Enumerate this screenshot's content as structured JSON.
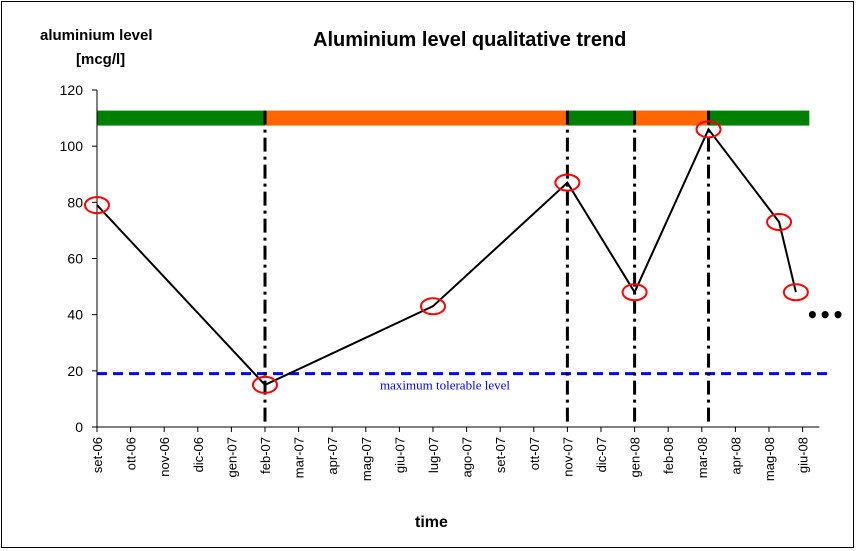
{
  "chart_data": {
    "type": "line",
    "title": "Aluminium level qualitative trend",
    "ylabel_line1": "aluminium level",
    "ylabel_line2": "[mcg/l]",
    "xlabel": "time",
    "ylim": [
      0,
      120
    ],
    "yticks": [
      0,
      20,
      40,
      60,
      80,
      100,
      120
    ],
    "categories": [
      "set-06",
      "ott-06",
      "nov-06",
      "dic-06",
      "gen-07",
      "feb-07",
      "mar-07",
      "apr-07",
      "mag-07",
      "giu-07",
      "lug-07",
      "ago-07",
      "set-07",
      "ott-07",
      "nov-07",
      "dic-07",
      "gen-08",
      "feb-08",
      "mar-08",
      "apr-08",
      "mag-08",
      "giu-08"
    ],
    "series": [
      {
        "name": "",
        "color": "#000000",
        "points": [
          {
            "x": 0,
            "y": 79
          },
          {
            "x": 5,
            "y": 15
          },
          {
            "x": 10,
            "y": 43
          },
          {
            "x": 14,
            "y": 87
          },
          {
            "x": 16,
            "y": 48
          },
          {
            "x": 18.2,
            "y": 106
          },
          {
            "x": 20.3,
            "y": 73
          },
          {
            "x": 20.8,
            "y": 48
          }
        ]
      }
    ],
    "highlight_color": "#ff0000",
    "threshold": {
      "value": 19,
      "label": "maximum tolerable level",
      "color": "#0000ff"
    },
    "status_bar": {
      "y": 110,
      "segments": [
        {
          "from": 0,
          "to": 5,
          "color": "#008000"
        },
        {
          "from": 5,
          "to": 14,
          "color": "#ff6600"
        },
        {
          "from": 14,
          "to": 16,
          "color": "#008000"
        },
        {
          "from": 16,
          "to": 18.2,
          "color": "#ff6600"
        },
        {
          "from": 18.2,
          "to": 21.2,
          "color": "#008000"
        }
      ]
    },
    "vertical_markers": [
      5,
      14,
      16,
      18.2
    ],
    "continuation": "•••",
    "grid": false
  }
}
